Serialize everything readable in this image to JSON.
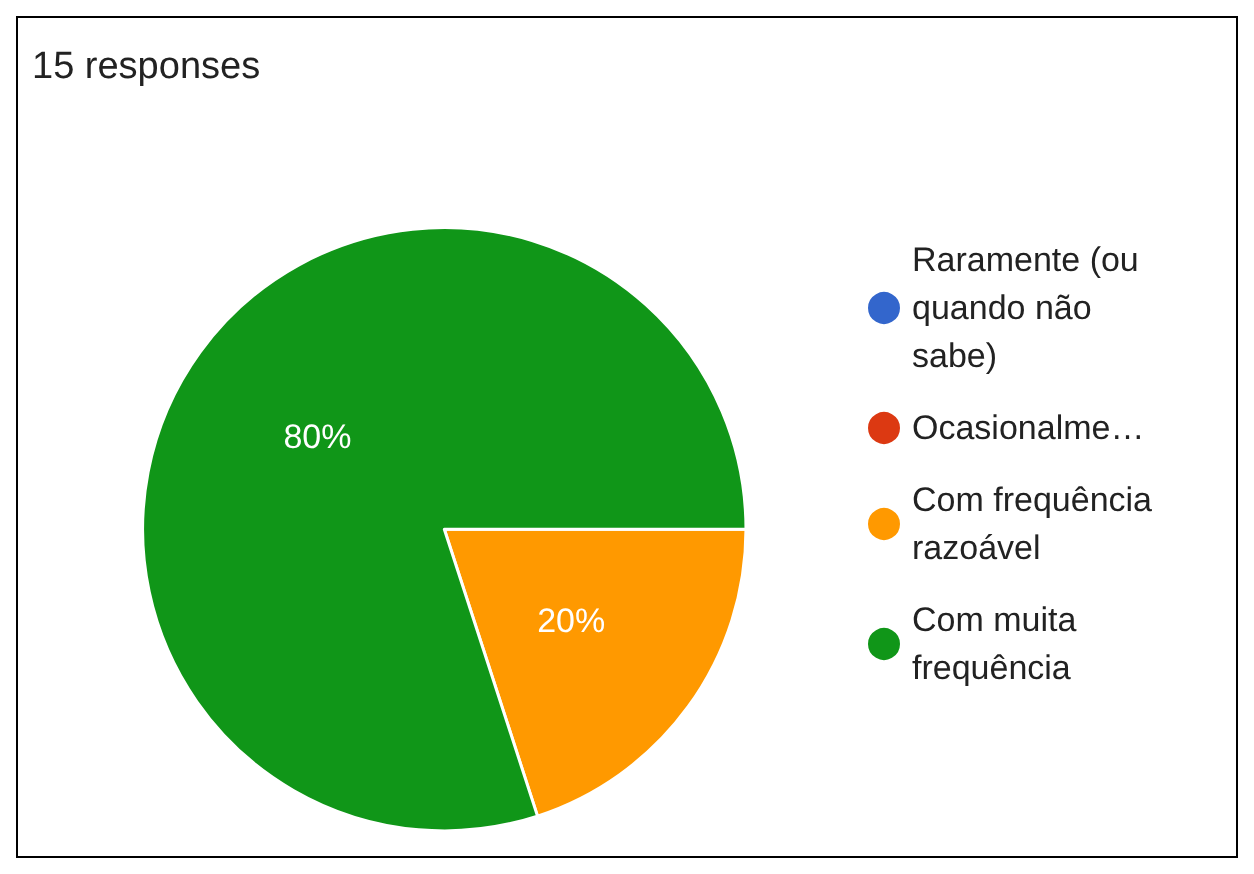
{
  "chart_data": {
    "type": "pie",
    "title": "15 responses",
    "categories": [
      "Raramente (ou quando não sabe)",
      "Ocasionalme…",
      "Com frequência razoável",
      "Com muita frequência"
    ],
    "values": [
      0,
      0,
      20,
      80
    ],
    "colors": [
      "#3366cc",
      "#dc3912",
      "#ff9900",
      "#109618"
    ],
    "value_labels": [
      null,
      null,
      "20%",
      "80%"
    ],
    "legend": "right"
  }
}
